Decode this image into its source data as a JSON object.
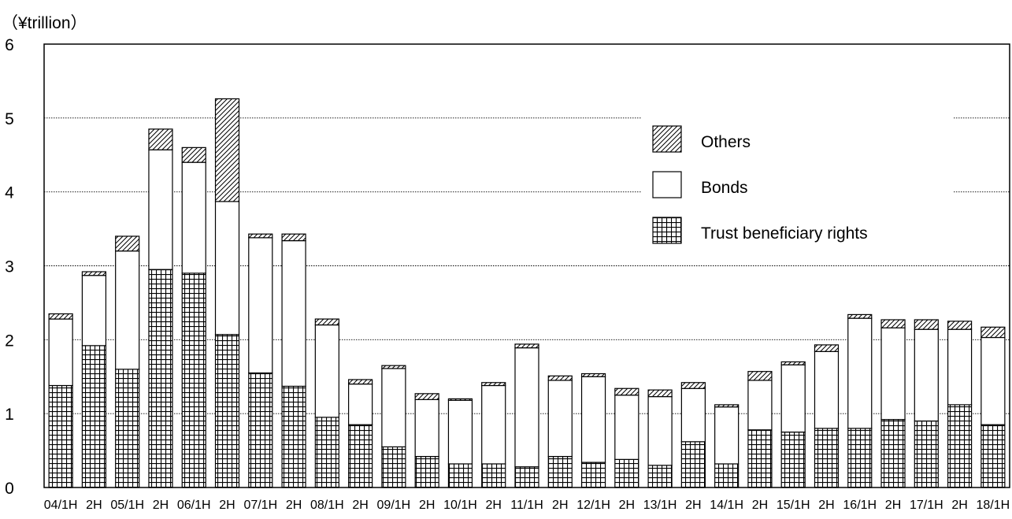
{
  "chart_data": {
    "type": "bar",
    "stacked": true,
    "unit_label": "（¥trillion）",
    "ylim": [
      0,
      6
    ],
    "yticks": [
      "0",
      "1",
      "2",
      "3",
      "4",
      "5",
      "6"
    ],
    "grid": "dotted horizontal",
    "legend_position": "top-right",
    "categories": [
      "04/1H",
      "2H",
      "05/1H",
      "2H",
      "06/1H",
      "2H",
      "07/1H",
      "2H",
      "08/1H",
      "2H",
      "09/1H",
      "2H",
      "10/1H",
      "2H",
      "11/1H",
      "2H",
      "12/1H",
      "2H",
      "13/1H",
      "2H",
      "14/1H",
      "2H",
      "15/1H",
      "2H",
      "16/1H",
      "2H",
      "17/1H",
      "2H",
      "18/1H"
    ],
    "series": [
      {
        "name": "Trust beneficiary rights",
        "pattern": "grid",
        "values": [
          1.38,
          1.92,
          1.6,
          2.95,
          2.9,
          2.07,
          1.55,
          1.37,
          0.95,
          0.85,
          0.55,
          0.42,
          0.32,
          0.32,
          0.28,
          0.42,
          0.34,
          0.38,
          0.3,
          0.62,
          0.32,
          0.78,
          0.75,
          0.8,
          0.8,
          0.92,
          0.9,
          1.12,
          0.85
        ]
      },
      {
        "name": "Bonds",
        "pattern": "blank",
        "values": [
          0.9,
          0.95,
          1.6,
          1.62,
          1.5,
          1.8,
          1.83,
          1.97,
          1.25,
          0.55,
          1.06,
          0.77,
          0.86,
          1.06,
          1.61,
          1.03,
          1.16,
          0.87,
          0.93,
          0.72,
          0.77,
          0.67,
          0.91,
          1.04,
          1.49,
          1.24,
          1.24,
          1.02,
          1.18
        ]
      },
      {
        "name": "Others",
        "pattern": "hatch",
        "values": [
          0.07,
          0.05,
          0.2,
          0.28,
          0.2,
          1.39,
          0.05,
          0.09,
          0.08,
          0.06,
          0.04,
          0.08,
          0.02,
          0.04,
          0.05,
          0.06,
          0.04,
          0.09,
          0.09,
          0.08,
          0.03,
          0.12,
          0.04,
          0.09,
          0.05,
          0.11,
          0.13,
          0.11,
          0.14
        ]
      }
    ],
    "legend_order": [
      "Others",
      "Bonds",
      "Trust beneficiary rights"
    ]
  }
}
